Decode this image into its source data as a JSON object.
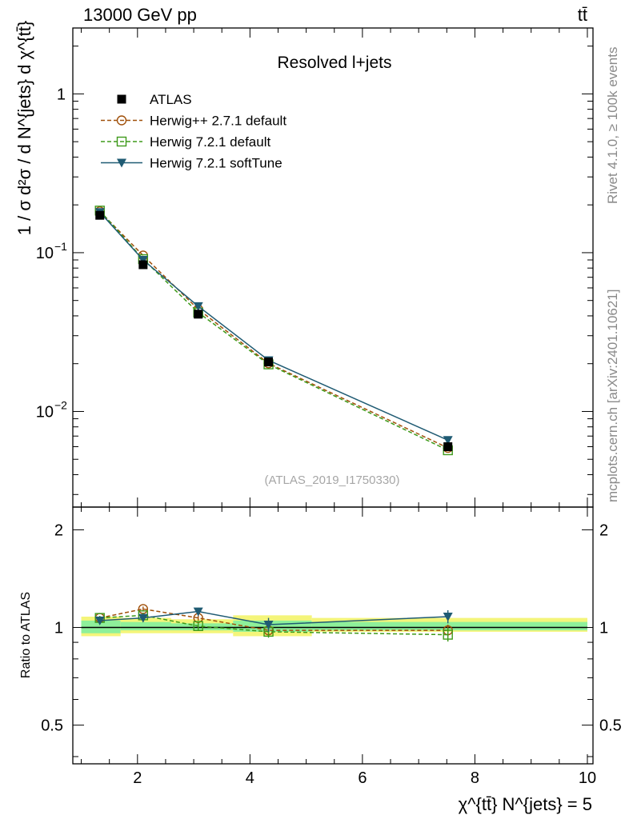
{
  "header": {
    "left": "13000 GeV pp",
    "right": "tt̄"
  },
  "side": {
    "rivet": "Rivet 4.1.0, ≥ 100k events",
    "mcplots": "mcplots.cern.ch [arXiv:2401.10621]"
  },
  "chart_data": {
    "type": "line",
    "title": "Resolved l+jets",
    "watermark": "(ATLAS_2019_I1750330)",
    "ylabel_main": "1 / σ d²σ / d N^{jets} d χ^{tt̄}",
    "ylabel_ratio": "Ratio to ATLAS",
    "xlabel": "χ^{tt̄} N^{jets} = 5",
    "xlim": [
      0.85,
      10.1
    ],
    "ylim_main": [
      0.0025,
      2.6
    ],
    "ylim_ratio": [
      0.38,
      2.35
    ],
    "yscale_main": "log",
    "yscale_ratio": "log",
    "x_ticks": [
      2,
      4,
      6,
      8,
      10
    ],
    "y_ticks_main": [
      {
        "value": 1,
        "label": "1"
      },
      {
        "value": 0.1,
        "label": "10",
        "sup": "−1"
      },
      {
        "value": 0.01,
        "label": "10",
        "sup": "−2"
      }
    ],
    "y_ticks_ratio": [
      {
        "value": 2,
        "label": "2"
      },
      {
        "value": 1,
        "label": "1"
      },
      {
        "value": 0.5,
        "label": "0.5"
      }
    ],
    "bins": [
      {
        "lo": 1.0,
        "hi": 1.7
      },
      {
        "lo": 1.7,
        "hi": 2.6
      },
      {
        "lo": 2.6,
        "hi": 3.7
      },
      {
        "lo": 3.7,
        "hi": 5.1
      },
      {
        "lo": 5.1,
        "hi": 10.0
      }
    ],
    "band_yellow": [
      [
        0.94,
        1.08
      ],
      [
        0.96,
        1.07
      ],
      [
        0.96,
        1.06
      ],
      [
        0.94,
        1.09
      ],
      [
        0.97,
        1.07
      ]
    ],
    "band_green": [
      [
        0.96,
        1.05
      ],
      [
        0.98,
        1.04
      ],
      [
        0.98,
        1.03
      ],
      [
        0.97,
        1.05
      ],
      [
        0.98,
        1.04
      ]
    ],
    "x": [
      1.33,
      2.1,
      3.08,
      4.33,
      7.52
    ],
    "series": [
      {
        "name": "ATLAS",
        "marker": "square-filled",
        "color": "#000000",
        "dash": "none",
        "values": [
          0.172,
          0.084,
          0.041,
          0.0205,
          0.006
        ],
        "ratio": [
          1,
          1,
          1,
          1,
          1
        ],
        "err": [
          0,
          0,
          0,
          0,
          0
        ]
      },
      {
        "name": "Herwig++ 2.7.1 default",
        "marker": "circle-open",
        "color": "#a0500a",
        "dash": "5,3",
        "values": [
          0.182,
          0.096,
          0.044,
          0.0201,
          0.0059
        ],
        "ratio": [
          1.07,
          1.14,
          1.07,
          0.98,
          0.98
        ],
        "err": [
          0.015,
          0.02,
          0.02,
          0.04,
          0.04
        ]
      },
      {
        "name": "Herwig 7.2.1 default",
        "marker": "square-open",
        "color": "#3e9a1a",
        "dash": "5,3",
        "values": [
          0.184,
          0.091,
          0.042,
          0.0198,
          0.0057
        ],
        "ratio": [
          1.07,
          1.09,
          1.01,
          0.97,
          0.95
        ],
        "err": [
          0.015,
          0.02,
          0.03,
          0.04,
          0.045
        ]
      },
      {
        "name": "Herwig 7.2.1 softTune",
        "marker": "triangle-down-filled",
        "color": "#1f5b73",
        "dash": "none",
        "values": [
          0.18,
          0.09,
          0.046,
          0.021,
          0.0066
        ],
        "ratio": [
          1.05,
          1.07,
          1.12,
          1.02,
          1.08
        ],
        "err": [
          0.015,
          0.025,
          0.03,
          0.05,
          0.05
        ]
      }
    ]
  }
}
